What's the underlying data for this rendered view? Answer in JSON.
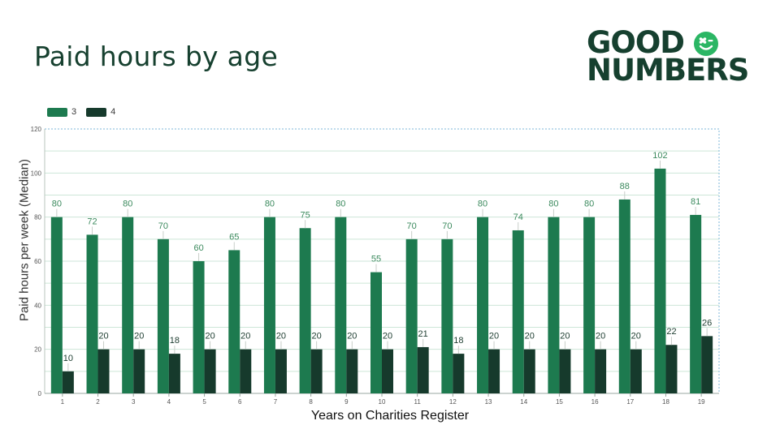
{
  "header": {
    "title": "Paid hours by age"
  },
  "logo": {
    "line1": "GOOD",
    "line2": "NUMBERS",
    "badge_icon": "smiley-flower-icon"
  },
  "colors": {
    "series_3": "#1d7a4f",
    "series_4": "#163a2c",
    "grid": "#cde6d8",
    "frame": "#7fb7d9",
    "label_3": "#3c8a5e",
    "label_4": "#1d3d30"
  },
  "chart_data": {
    "type": "bar",
    "title": "",
    "xlabel": "Years on Charities Register",
    "ylabel": "Paid hours per week (Median)",
    "ylim": [
      0,
      120
    ],
    "yticks": [
      0,
      20,
      40,
      60,
      80,
      100,
      120
    ],
    "grid": true,
    "legend_position": "top-left",
    "categories": [
      "1",
      "2",
      "3",
      "4",
      "5",
      "6",
      "7",
      "8",
      "9",
      "10",
      "11",
      "12",
      "13",
      "14",
      "15",
      "16",
      "17",
      "18",
      "19"
    ],
    "series": [
      {
        "name": "3",
        "values": [
          80,
          72,
          80,
          70,
          60,
          65,
          80,
          75,
          80,
          55,
          70,
          70,
          80,
          74,
          80,
          80,
          88,
          102,
          81
        ]
      },
      {
        "name": "4",
        "values": [
          10,
          20,
          20,
          18,
          20,
          20,
          20,
          20,
          20,
          20,
          21,
          18,
          20,
          20,
          20,
          20,
          20,
          22,
          26
        ]
      }
    ]
  }
}
